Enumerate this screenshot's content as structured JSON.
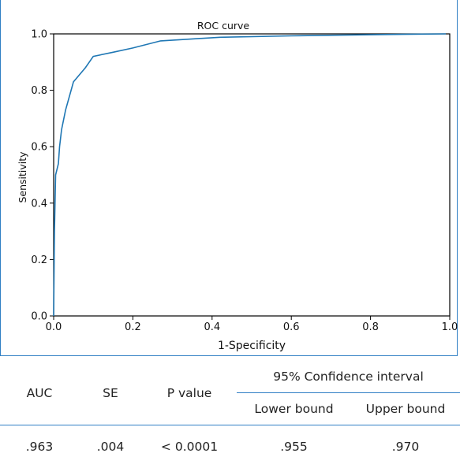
{
  "chart_data": {
    "type": "line",
    "title": "ROC curve",
    "xlabel": "1-Specificity",
    "ylabel": "Sensitivity",
    "xlim": [
      0,
      1
    ],
    "ylim": [
      0,
      1
    ],
    "xticks": [
      "0.0",
      "0.2",
      "0.4",
      "0.6",
      "0.8",
      "1.0"
    ],
    "yticks": [
      "0.0",
      "0.2",
      "0.4",
      "0.6",
      "0.8",
      "1.0"
    ],
    "grid": false,
    "line_color": "#1f77b4",
    "series": [
      {
        "x": [
          0,
          0.002,
          0.005,
          0.012,
          0.015,
          0.02,
          0.03,
          0.05,
          0.08,
          0.1,
          0.15,
          0.2,
          0.27,
          0.35,
          0.42,
          0.6,
          0.8,
          0.9,
          0.99
        ],
        "y": [
          0,
          0.3,
          0.5,
          0.54,
          0.6,
          0.66,
          0.73,
          0.83,
          0.88,
          0.92,
          0.935,
          0.95,
          0.975,
          0.982,
          0.988,
          0.993,
          0.997,
          0.999,
          1.0
        ]
      }
    ]
  },
  "stats_table": {
    "headers": [
      "AUC",
      "SE",
      "P value",
      "95% Confidence interval"
    ],
    "subheaders": [
      "Lower bound",
      "Upper bound"
    ],
    "values": [
      ".963",
      ".004",
      "< 0.0001",
      ".955",
      ".970"
    ]
  },
  "colors": {
    "frame": "#2f7fc4",
    "curve": "#1f77b4"
  }
}
